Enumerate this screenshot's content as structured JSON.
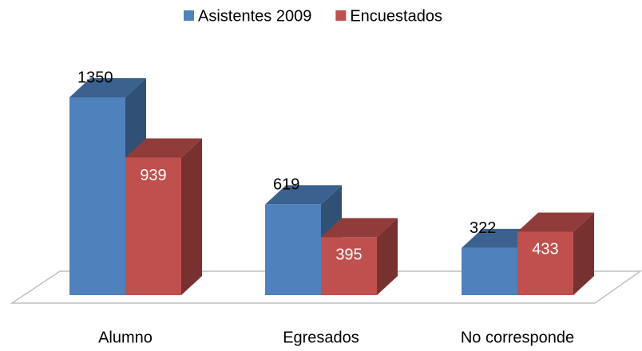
{
  "chart_data": {
    "type": "bar3d",
    "categories": [
      "Alumno",
      "Egresados",
      "No corresponde"
    ],
    "series": [
      {
        "name": "Asistentes 2009",
        "color": "#4f81bd",
        "values": [
          1350,
          619,
          322
        ]
      },
      {
        "name": "Encuestados",
        "color": "#c0504d",
        "values": [
          939,
          395,
          433
        ]
      }
    ],
    "legend": "top"
  }
}
